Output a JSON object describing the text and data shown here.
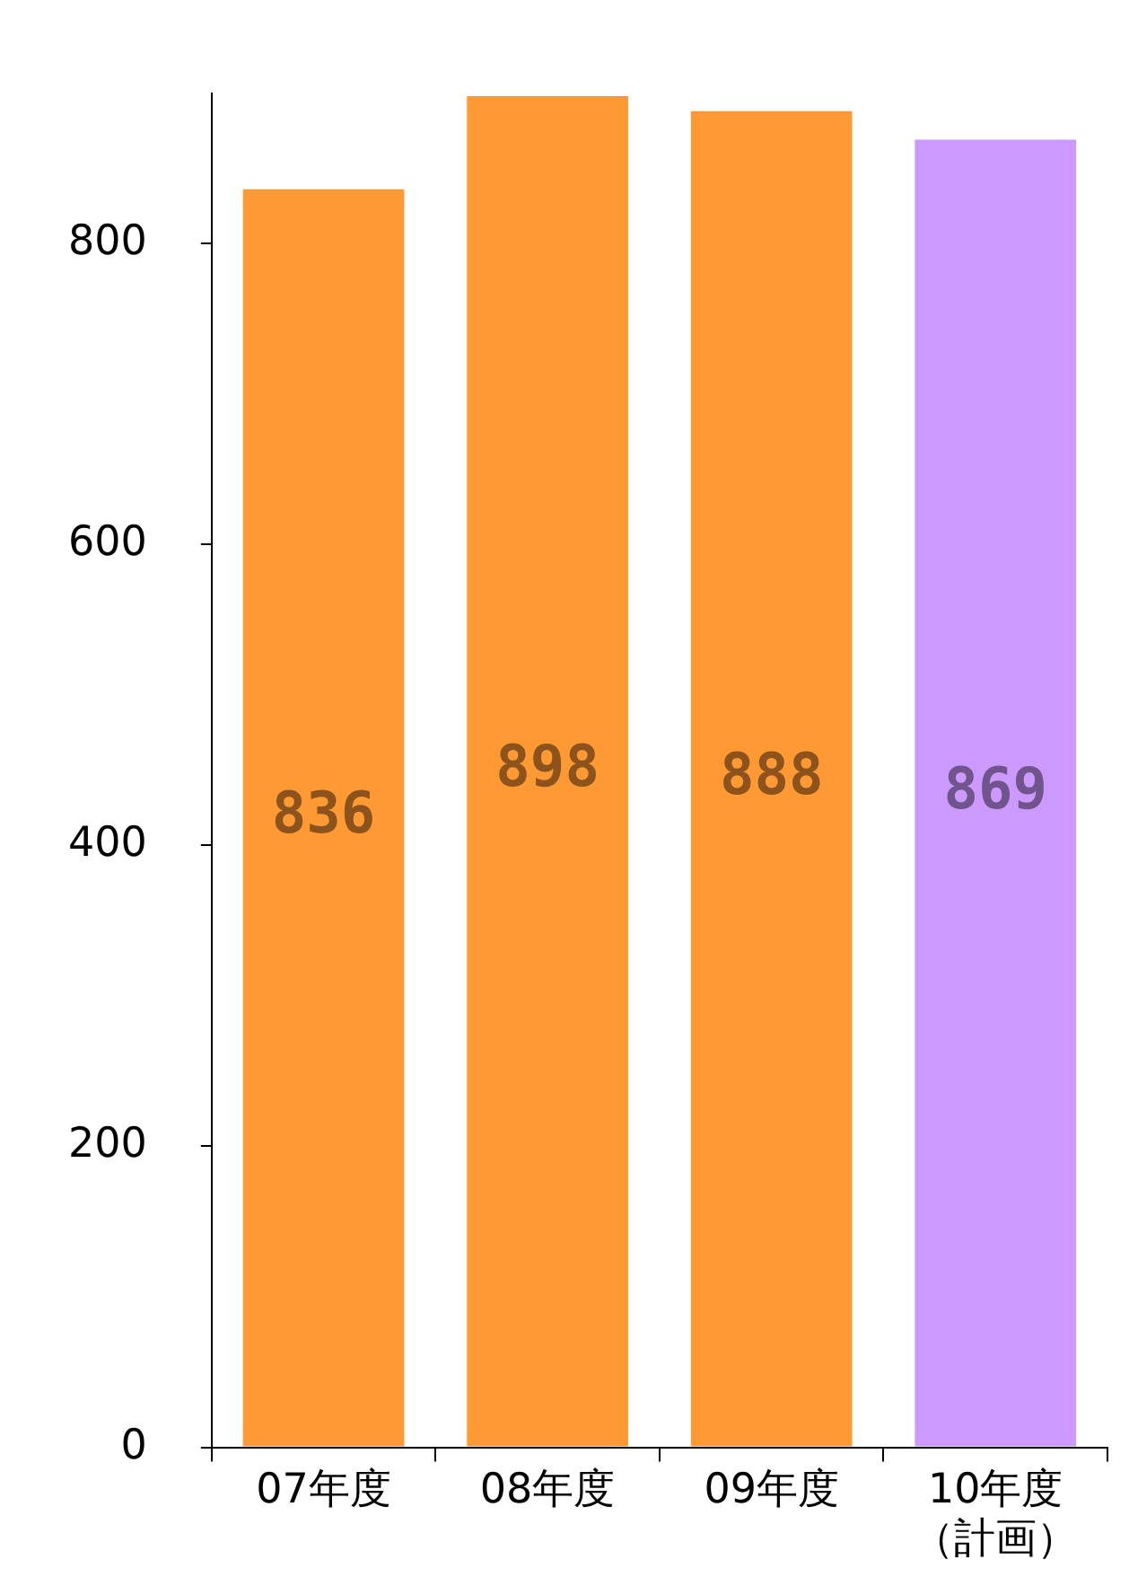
{
  "chart_data": {
    "type": "bar",
    "categories": [
      "07年度",
      "08年度",
      "09年度",
      "10年度（計画）"
    ],
    "values": [
      836,
      898,
      888,
      869
    ],
    "colors": [
      "#ff9933",
      "#ff9933",
      "#ff9933",
      "#cc99ff"
    ],
    "data_labels": true,
    "ylim": [
      0,
      900
    ],
    "yticks": [
      0,
      200,
      400,
      600,
      800
    ],
    "grid": false,
    "legend": false
  }
}
